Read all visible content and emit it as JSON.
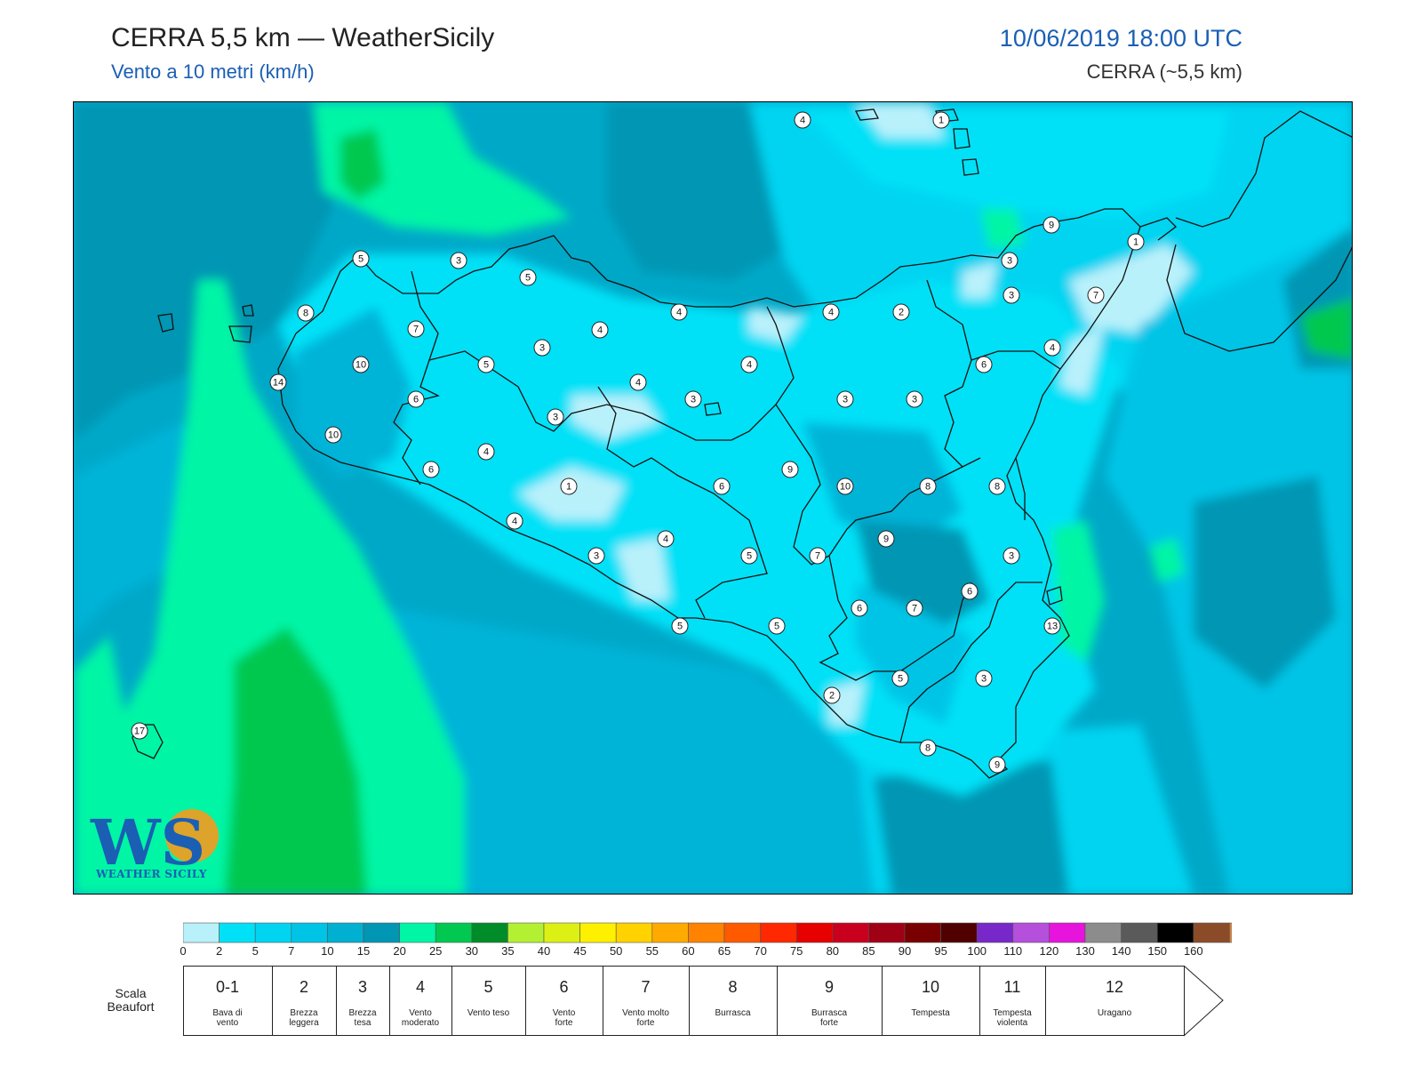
{
  "header": {
    "title": "CERRA 5,5 km — WeatherSicily",
    "subtitle": "Vento a 10 metri (km/h)",
    "datetime": "10/06/2019 18:00 UTC",
    "model": "CERRA (~5,5 km)"
  },
  "colors": {
    "lightest": "#b9f1fb",
    "cyan": "#00e1f7",
    "sky": "#00cbec",
    "mid": "#00b4d8",
    "teal": "#0096b4",
    "aqua_green": "#00f5a5",
    "green": "#00c850",
    "title_blue": "#1a5fb4"
  },
  "map": {
    "stations": [
      {
        "value": "4"
      },
      {
        "value": "1"
      },
      {
        "value": "9"
      },
      {
        "value": "1"
      },
      {
        "value": "5"
      },
      {
        "value": "3"
      },
      {
        "value": "5"
      },
      {
        "value": "8"
      },
      {
        "value": "7"
      },
      {
        "value": "4"
      },
      {
        "value": "3"
      },
      {
        "value": "4"
      },
      {
        "value": "4"
      },
      {
        "value": "2"
      },
      {
        "value": "3"
      },
      {
        "value": "7"
      },
      {
        "value": "10"
      },
      {
        "value": "5"
      },
      {
        "value": "14"
      },
      {
        "value": "6"
      },
      {
        "value": "4"
      },
      {
        "value": "3"
      },
      {
        "value": "4"
      },
      {
        "value": "6"
      },
      {
        "value": "3"
      },
      {
        "value": "3"
      },
      {
        "value": "4"
      },
      {
        "value": "3"
      },
      {
        "value": "10"
      },
      {
        "value": "4"
      },
      {
        "value": "3"
      },
      {
        "value": "6"
      },
      {
        "value": "1"
      },
      {
        "value": "6"
      },
      {
        "value": "9"
      },
      {
        "value": "10"
      },
      {
        "value": "8"
      },
      {
        "value": "8"
      },
      {
        "value": "4"
      },
      {
        "value": "4"
      },
      {
        "value": "3"
      },
      {
        "value": "5"
      },
      {
        "value": "7"
      },
      {
        "value": "9"
      },
      {
        "value": "3"
      },
      {
        "value": "6"
      },
      {
        "value": "6"
      },
      {
        "value": "7"
      },
      {
        "value": "5"
      },
      {
        "value": "5"
      },
      {
        "value": "13"
      },
      {
        "value": "2"
      },
      {
        "value": "5"
      },
      {
        "value": "3"
      },
      {
        "value": "17"
      },
      {
        "value": "8"
      },
      {
        "value": "9"
      }
    ]
  },
  "logo": {
    "letters": "WS",
    "text": "WEATHER SICILY"
  },
  "colorbar": {
    "unit": "km/h",
    "ticks": [
      "0",
      "2",
      "5",
      "7",
      "10",
      "15",
      "20",
      "25",
      "30",
      "35",
      "40",
      "45",
      "50",
      "55",
      "60",
      "65",
      "70",
      "75",
      "80",
      "85",
      "90",
      "95",
      "100",
      "110",
      "120",
      "130",
      "140",
      "150",
      "160"
    ],
    "colors": [
      "#b9f1fb",
      "#00e1f7",
      "#00d4f1",
      "#00c4e6",
      "#00b0d0",
      "#0096b4",
      "#00f5a5",
      "#00c850",
      "#008c28",
      "#b4f032",
      "#dcf014",
      "#fff000",
      "#ffd200",
      "#ffaa00",
      "#ff8200",
      "#ff5a00",
      "#ff2800",
      "#e60000",
      "#c8001e",
      "#a00014",
      "#780000",
      "#500000",
      "#7828c8",
      "#b450dc",
      "#e614dc",
      "#8c8c8c",
      "#5a5a5a",
      "#000000",
      "#8c4b28",
      "#cd8246"
    ]
  },
  "beaufort": {
    "title": "Scala\nBeaufort",
    "levels": [
      {
        "num": "0-1",
        "desc": "Bava di\nvento"
      },
      {
        "num": "2",
        "desc": "Brezza\nleggera"
      },
      {
        "num": "3",
        "desc": "Brezza\ntesa"
      },
      {
        "num": "4",
        "desc": "Vento\nmoderato"
      },
      {
        "num": "5",
        "desc": "Vento teso"
      },
      {
        "num": "6",
        "desc": "Vento\nforte"
      },
      {
        "num": "7",
        "desc": "Vento molto\nforte"
      },
      {
        "num": "8",
        "desc": "Burrasca"
      },
      {
        "num": "9",
        "desc": "Burrasca\nforte"
      },
      {
        "num": "10",
        "desc": "Tempesta"
      },
      {
        "num": "11",
        "desc": "Tempesta\nviolenta"
      },
      {
        "num": "12",
        "desc": "Uragano"
      }
    ]
  }
}
